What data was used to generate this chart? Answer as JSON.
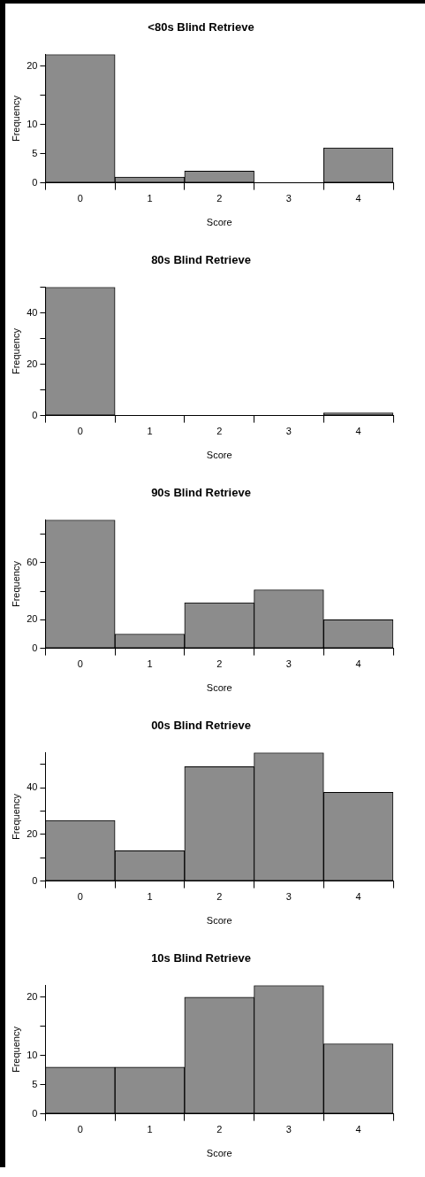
{
  "chart_data": [
    {
      "type": "bar",
      "title": "<80s Blind Retrieve",
      "xlabel": "Score",
      "ylabel": "Frequency",
      "categories": [
        "0",
        "1",
        "2",
        "3",
        "4"
      ],
      "values": [
        22,
        1,
        2,
        0,
        6
      ],
      "color": "#8c8c8c",
      "ylim": [
        0,
        22
      ],
      "yticks": [
        0,
        5,
        10,
        {
          "value": 15,
          "label": null
        },
        20
      ],
      "grid": false,
      "legend": false
    },
    {
      "type": "bar",
      "title": "80s Blind Retrieve",
      "xlabel": "Score",
      "ylabel": "Frequency",
      "categories": [
        "0",
        "1",
        "2",
        "3",
        "4"
      ],
      "values": [
        50,
        0,
        0,
        0,
        1
      ],
      "color": "#8c8c8c",
      "ylim": [
        0,
        50
      ],
      "yticks": [
        0,
        {
          "value": 10,
          "label": null
        },
        20,
        {
          "value": 30,
          "label": null
        },
        40,
        {
          "value": 50,
          "label": null
        }
      ],
      "grid": false,
      "legend": false
    },
    {
      "type": "bar",
      "title": "90s Blind Retrieve",
      "xlabel": "Score",
      "ylabel": "Frequency",
      "categories": [
        "0",
        "1",
        "2",
        "3",
        "4"
      ],
      "values": [
        90,
        10,
        32,
        41,
        20
      ],
      "color": "#8c8c8c",
      "ylim": [
        0,
        90
      ],
      "yticks": [
        0,
        20,
        {
          "value": 40,
          "label": null
        },
        60,
        {
          "value": 80,
          "label": null
        }
      ],
      "grid": false,
      "legend": false
    },
    {
      "type": "bar",
      "title": "00s Blind Retrieve",
      "xlabel": "Score",
      "ylabel": "Frequency",
      "categories": [
        "0",
        "1",
        "2",
        "3",
        "4"
      ],
      "values": [
        26,
        13,
        49,
        55,
        38
      ],
      "color": "#8c8c8c",
      "ylim": [
        0,
        55
      ],
      "yticks": [
        0,
        {
          "value": 10,
          "label": null
        },
        20,
        {
          "value": 30,
          "label": null
        },
        40,
        {
          "value": 50,
          "label": null
        }
      ],
      "grid": false,
      "legend": false
    },
    {
      "type": "bar",
      "title": "10s Blind Retrieve",
      "xlabel": "Score",
      "ylabel": "Frequency",
      "categories": [
        "0",
        "1",
        "2",
        "3",
        "4"
      ],
      "values": [
        8,
        8,
        20,
        22,
        12
      ],
      "color": "#8c8c8c",
      "ylim": [
        0,
        22
      ],
      "yticks": [
        0,
        5,
        10,
        {
          "value": 15,
          "label": null
        },
        20
      ],
      "grid": false,
      "legend": false
    }
  ]
}
